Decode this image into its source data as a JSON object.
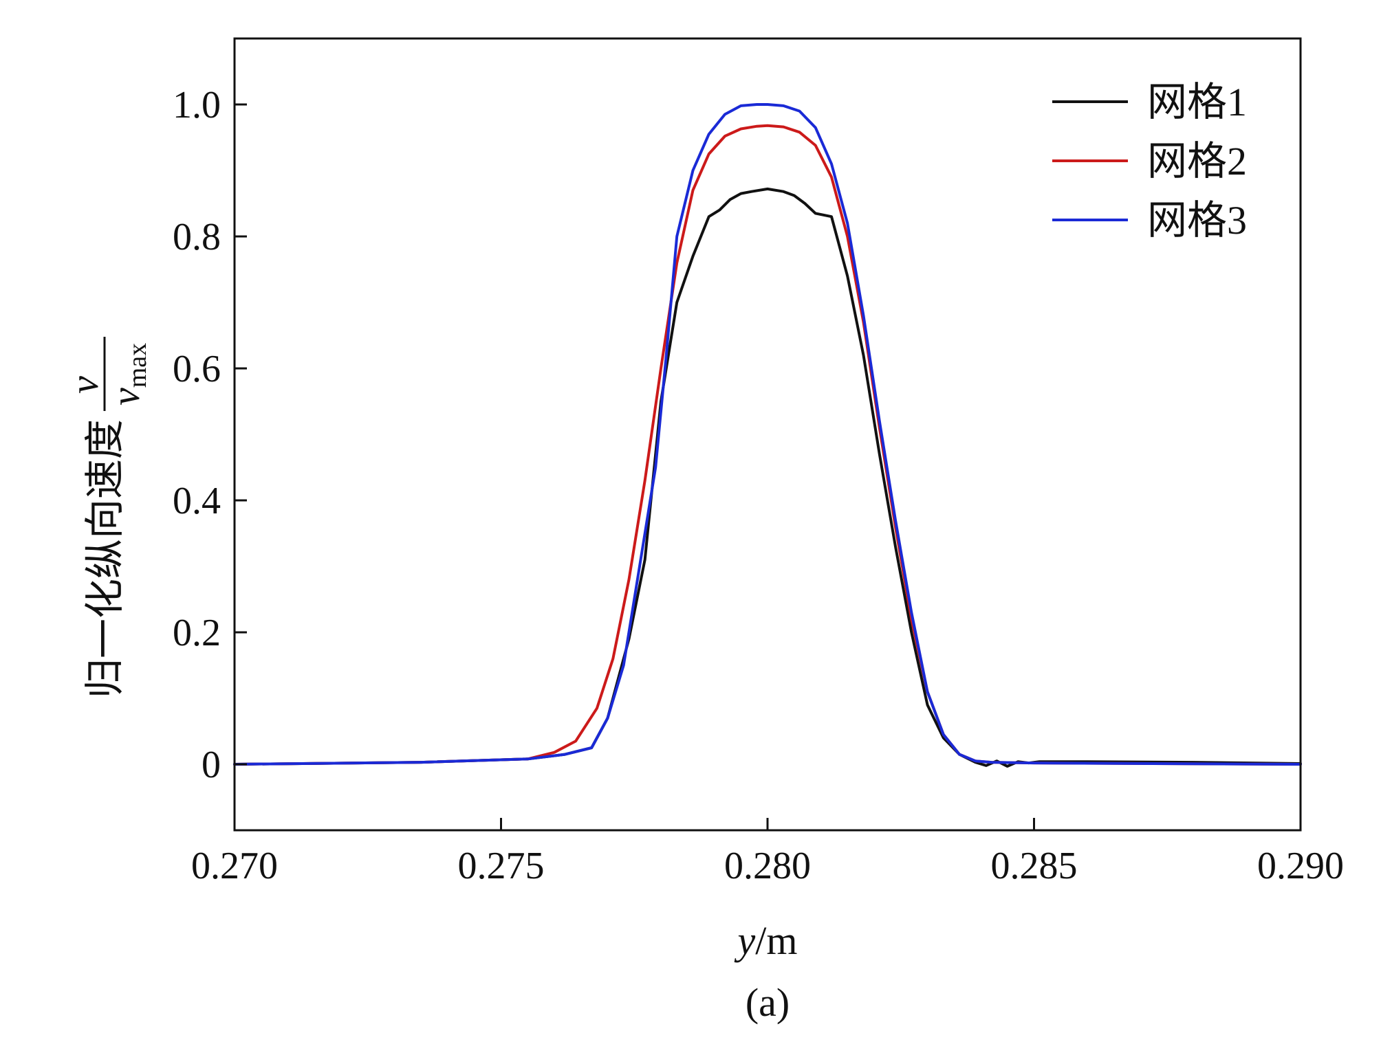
{
  "chart_data": {
    "type": "line",
    "xlim": [
      0.27,
      0.29
    ],
    "ylim": [
      -0.1,
      1.1
    ],
    "x_ticks": [
      0.27,
      0.275,
      0.28,
      0.285,
      0.29
    ],
    "x_tick_labels": [
      "0.270",
      "0.275",
      "0.280",
      "0.285",
      "0.290"
    ],
    "y_ticks": [
      0,
      0.2,
      0.4,
      0.6,
      0.8,
      1.0
    ],
    "y_tick_labels": [
      "0",
      "0.2",
      "0.4",
      "0.6",
      "0.8",
      "1.0"
    ],
    "xlabel_italic": "y",
    "xlabel_rest": "/m",
    "ylabel_text": "归一化纵向速度",
    "ylabel_frac_num": "v",
    "ylabel_frac_den": "v",
    "ylabel_frac_den_sub": "max",
    "caption": "(a)",
    "legend_position": "top-right",
    "grid": false,
    "series": [
      {
        "name": "网格1",
        "color": "#111111",
        "x": [
          0.27,
          0.2735,
          0.2755,
          0.2762,
          0.2767,
          0.277,
          0.2774,
          0.2777,
          0.278,
          0.2783,
          0.2786,
          0.2789,
          0.2791,
          0.2793,
          0.2795,
          0.2797,
          0.28,
          0.2803,
          0.2805,
          0.2807,
          0.2809,
          0.2812,
          0.2815,
          0.2818,
          0.2821,
          0.2824,
          0.2827,
          0.283,
          0.2833,
          0.2836,
          0.2839,
          0.2841,
          0.2843,
          0.2845,
          0.2847,
          0.2849,
          0.2851,
          0.286,
          0.288,
          0.29
        ],
        "y": [
          0.0,
          0.003,
          0.008,
          0.015,
          0.025,
          0.07,
          0.19,
          0.31,
          0.55,
          0.7,
          0.77,
          0.83,
          0.84,
          0.856,
          0.865,
          0.868,
          0.872,
          0.868,
          0.862,
          0.85,
          0.835,
          0.83,
          0.74,
          0.62,
          0.47,
          0.33,
          0.2,
          0.09,
          0.04,
          0.015,
          0.003,
          -0.002,
          0.005,
          -0.003,
          0.004,
          0.002,
          0.004,
          0.004,
          0.003,
          0.001
        ]
      },
      {
        "name": "网格2",
        "color": "#cc1a1a",
        "x": [
          0.27,
          0.2735,
          0.2755,
          0.276,
          0.2764,
          0.2768,
          0.2771,
          0.2774,
          0.2777,
          0.278,
          0.2783,
          0.2786,
          0.2789,
          0.2792,
          0.2795,
          0.2798,
          0.28,
          0.2803,
          0.2806,
          0.2809,
          0.2812,
          0.2815,
          0.2818,
          0.2821,
          0.2824,
          0.2827,
          0.283,
          0.2833,
          0.2836,
          0.2839,
          0.2842,
          0.285,
          0.29
        ],
        "y": [
          0.0,
          0.003,
          0.008,
          0.018,
          0.035,
          0.085,
          0.16,
          0.28,
          0.43,
          0.6,
          0.76,
          0.87,
          0.925,
          0.952,
          0.963,
          0.967,
          0.968,
          0.966,
          0.958,
          0.938,
          0.89,
          0.8,
          0.67,
          0.51,
          0.36,
          0.22,
          0.11,
          0.045,
          0.015,
          0.005,
          0.003,
          0.002,
          0.0
        ]
      },
      {
        "name": "网格3",
        "color": "#1a2ad6",
        "x": [
          0.27,
          0.2735,
          0.2755,
          0.2762,
          0.2767,
          0.277,
          0.2773,
          0.2776,
          0.2779,
          0.2781,
          0.2783,
          0.2786,
          0.2789,
          0.2792,
          0.2795,
          0.2798,
          0.28,
          0.2803,
          0.2806,
          0.2809,
          0.2812,
          0.2815,
          0.2818,
          0.2821,
          0.2824,
          0.2827,
          0.283,
          0.2833,
          0.2836,
          0.2839,
          0.2842,
          0.285,
          0.29
        ],
        "y": [
          0.0,
          0.003,
          0.008,
          0.015,
          0.025,
          0.07,
          0.15,
          0.3,
          0.45,
          0.62,
          0.8,
          0.9,
          0.955,
          0.985,
          0.998,
          1.0,
          1.0,
          0.998,
          0.99,
          0.965,
          0.91,
          0.82,
          0.68,
          0.52,
          0.37,
          0.23,
          0.11,
          0.045,
          0.015,
          0.005,
          0.003,
          0.002,
          0.0
        ]
      }
    ]
  }
}
